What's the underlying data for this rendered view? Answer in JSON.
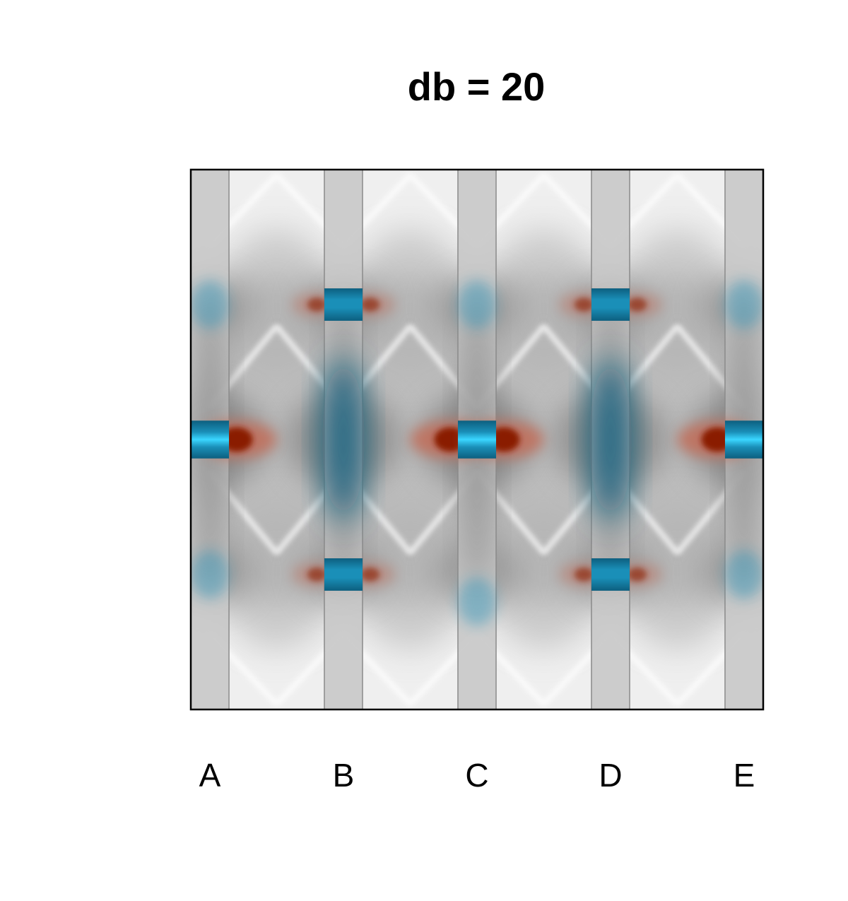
{
  "chart_data": {
    "type": "heatmap",
    "title": "db = 20",
    "xlabel": "",
    "ylabel": "",
    "categories": [
      "A",
      "B",
      "C",
      "D",
      "E"
    ],
    "x_positions": [
      0,
      1,
      2,
      3,
      4
    ],
    "xlim": [
      -0.143,
      4.143
    ],
    "ylim": [
      -1,
      1
    ],
    "grid": false,
    "legend": "none",
    "stripe_halfwidth": 0.143,
    "blobs": [
      {
        "col": 0,
        "y": 0,
        "kind": "blue-strong"
      },
      {
        "col": 2,
        "y": 0,
        "kind": "blue-strong"
      },
      {
        "col": 4,
        "y": 0,
        "kind": "blue-strong"
      },
      {
        "col": 1,
        "y": 0.5,
        "kind": "blue-medium"
      },
      {
        "col": 3,
        "y": 0.5,
        "kind": "blue-medium"
      },
      {
        "col": 1,
        "y": -0.5,
        "kind": "blue-medium"
      },
      {
        "col": 3,
        "y": -0.5,
        "kind": "blue-medium"
      },
      {
        "col": 1,
        "y": 0,
        "kind": "blue-diffuse"
      },
      {
        "col": 3,
        "y": 0,
        "kind": "blue-diffuse"
      },
      {
        "col": 0,
        "y": 0.5,
        "kind": "blue-faint"
      },
      {
        "col": 0,
        "y": -0.5,
        "kind": "blue-faint"
      },
      {
        "col": 2,
        "y": 0.5,
        "kind": "blue-faint"
      },
      {
        "col": 2,
        "y": -0.6,
        "kind": "blue-faint"
      },
      {
        "col": 4,
        "y": 0.5,
        "kind": "blue-faint"
      },
      {
        "col": 4,
        "y": -0.5,
        "kind": "blue-faint"
      }
    ],
    "red_spots": [
      {
        "x": 0.2,
        "y": 0,
        "strength": 1.0
      },
      {
        "x": 1.8,
        "y": 0,
        "strength": 1.0
      },
      {
        "x": 2.2,
        "y": 0,
        "strength": 1.0
      },
      {
        "x": 3.8,
        "y": 0,
        "strength": 1.0
      },
      {
        "x": 0.8,
        "y": 0.5,
        "strength": 0.6
      },
      {
        "x": 1.2,
        "y": 0.5,
        "strength": 0.6
      },
      {
        "x": 2.8,
        "y": 0.5,
        "strength": 0.6
      },
      {
        "x": 3.2,
        "y": 0.5,
        "strength": 0.6
      },
      {
        "x": 0.8,
        "y": -0.5,
        "strength": 0.6
      },
      {
        "x": 1.2,
        "y": -0.5,
        "strength": 0.6
      },
      {
        "x": 2.8,
        "y": -0.5,
        "strength": 0.6
      },
      {
        "x": 3.2,
        "y": -0.5,
        "strength": 0.6
      }
    ],
    "colors": {
      "background_light": "#efefef",
      "gray_mid": "#b0b0b0",
      "gray_dark": "#6e6e6e",
      "stripe": "#c8c8c8",
      "stripe_edge": "#8a8a8a",
      "blue_bright": "#3ad6ff",
      "blue_mid": "#1a8fb8",
      "blue_dark": "#0d5f7f",
      "red_dark": "#8a1a00",
      "red_light": "#c46a55",
      "frame": "#000000"
    }
  }
}
